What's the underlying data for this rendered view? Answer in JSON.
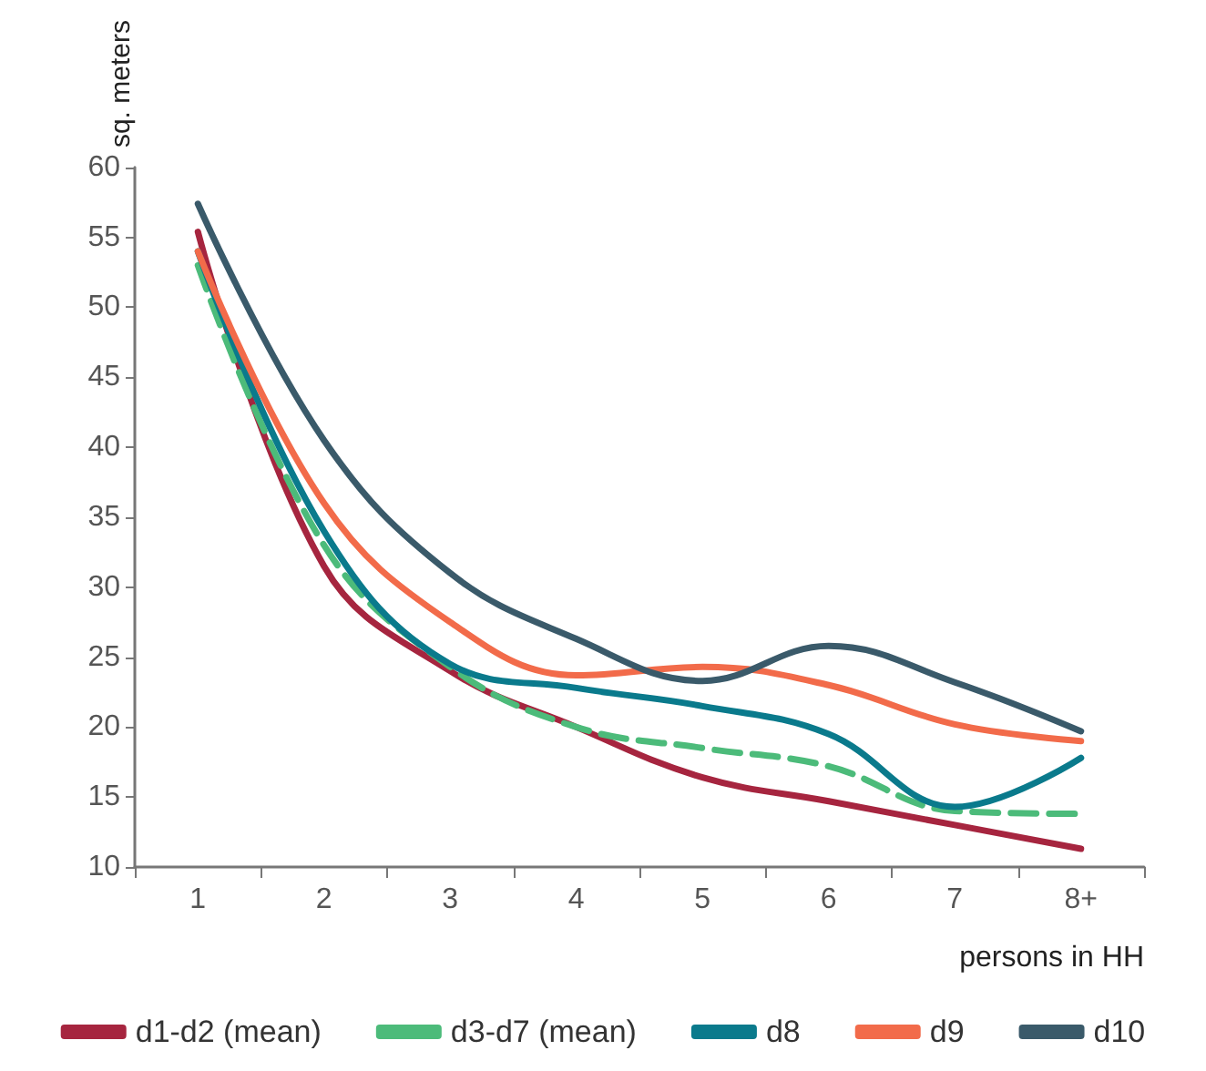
{
  "chart_data": {
    "type": "line",
    "xlabel": "persons in HH",
    "ylabel": "sq. meters",
    "categories": [
      "1",
      "2",
      "3",
      "4",
      "5",
      "6",
      "7",
      "8+"
    ],
    "ylim": [
      10,
      60
    ],
    "yticks": [
      10,
      15,
      20,
      25,
      30,
      35,
      40,
      45,
      50,
      55,
      60
    ],
    "grid": false,
    "legend": "bottom",
    "marker": "none",
    "series": [
      {
        "name": "d1-d2 (mean)",
        "color": "#a6253f",
        "values": [
          55.4,
          31.5,
          24,
          20,
          16.4,
          14.7,
          13,
          11.3
        ]
      },
      {
        "name": "d3-d7 (mean)",
        "color": "#4cbb7a",
        "line_style": "dashed",
        "values": [
          53,
          33,
          24.3,
          20,
          18.5,
          17.2,
          14,
          13.8
        ]
      },
      {
        "name": "d8",
        "color": "#0a7a8c",
        "values": [
          54,
          34,
          24.5,
          22.8,
          21.5,
          19.5,
          14.3,
          17.8
        ]
      },
      {
        "name": "d9",
        "color": "#f26b4a",
        "values": [
          54,
          36,
          27.5,
          23.7,
          24.3,
          23,
          20.2,
          19
        ]
      },
      {
        "name": "d10",
        "color": "#3a5a6a",
        "values": [
          57.4,
          40.5,
          31,
          26.3,
          23.3,
          25.8,
          23.2,
          19.7
        ]
      }
    ]
  }
}
